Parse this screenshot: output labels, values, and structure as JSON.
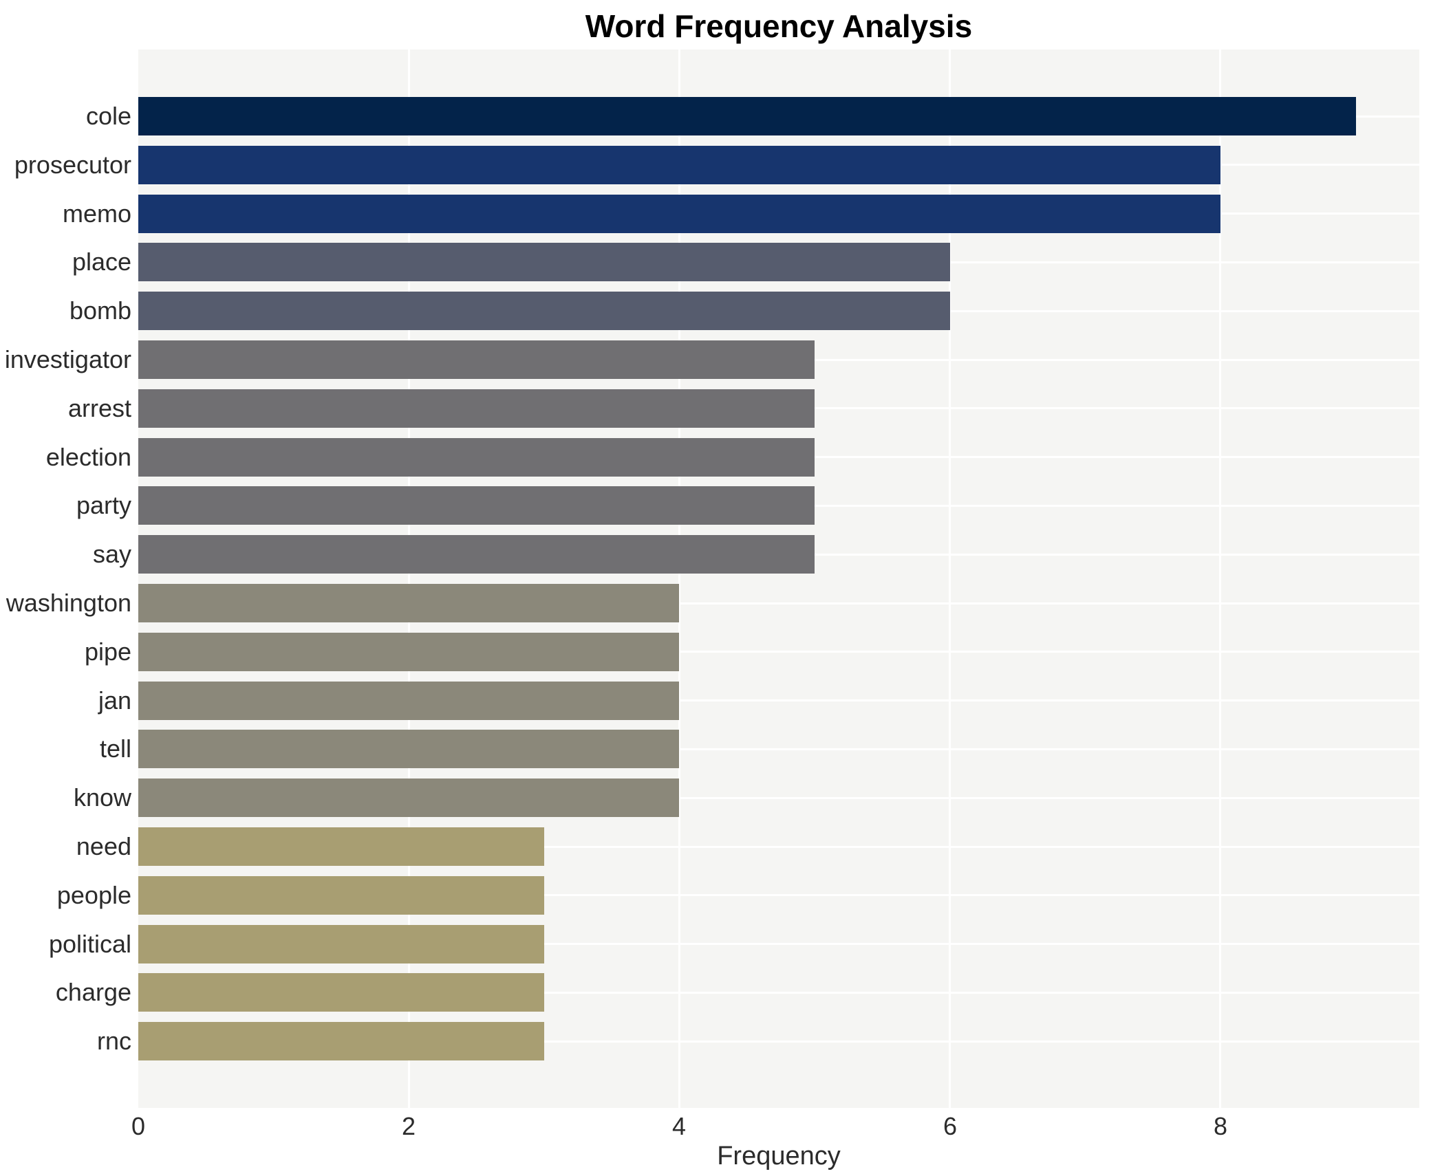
{
  "title": "Word Frequency Analysis",
  "chart_data": {
    "type": "bar",
    "orientation": "horizontal",
    "title": "Word Frequency Analysis",
    "xlabel": "Frequency",
    "ylabel": "",
    "categories": [
      "cole",
      "prosecutor",
      "memo",
      "place",
      "bomb",
      "investigator",
      "arrest",
      "election",
      "party",
      "say",
      "washington",
      "pipe",
      "jan",
      "tell",
      "know",
      "need",
      "people",
      "political",
      "charge",
      "rnc"
    ],
    "values": [
      9,
      8,
      8,
      6,
      6,
      5,
      5,
      5,
      5,
      5,
      4,
      4,
      4,
      4,
      4,
      3,
      3,
      3,
      3,
      3
    ],
    "bar_colors": [
      "#03234a",
      "#17356e",
      "#17356e",
      "#565c6e",
      "#565c6e",
      "#706f72",
      "#706f72",
      "#706f72",
      "#706f72",
      "#706f72",
      "#8b887a",
      "#8b887a",
      "#8b887a",
      "#8b887a",
      "#8b887a",
      "#a89e72",
      "#a89e72",
      "#a89e72",
      "#a89e72",
      "#a89e72"
    ],
    "xlim": [
      0,
      9.47
    ],
    "xticks": [
      0,
      2,
      4,
      6,
      8
    ],
    "grid": true,
    "legend": "none",
    "plot_bg": "#f5f5f3",
    "gridline_color": "#ffffff",
    "page_bg": "#ffffff"
  }
}
